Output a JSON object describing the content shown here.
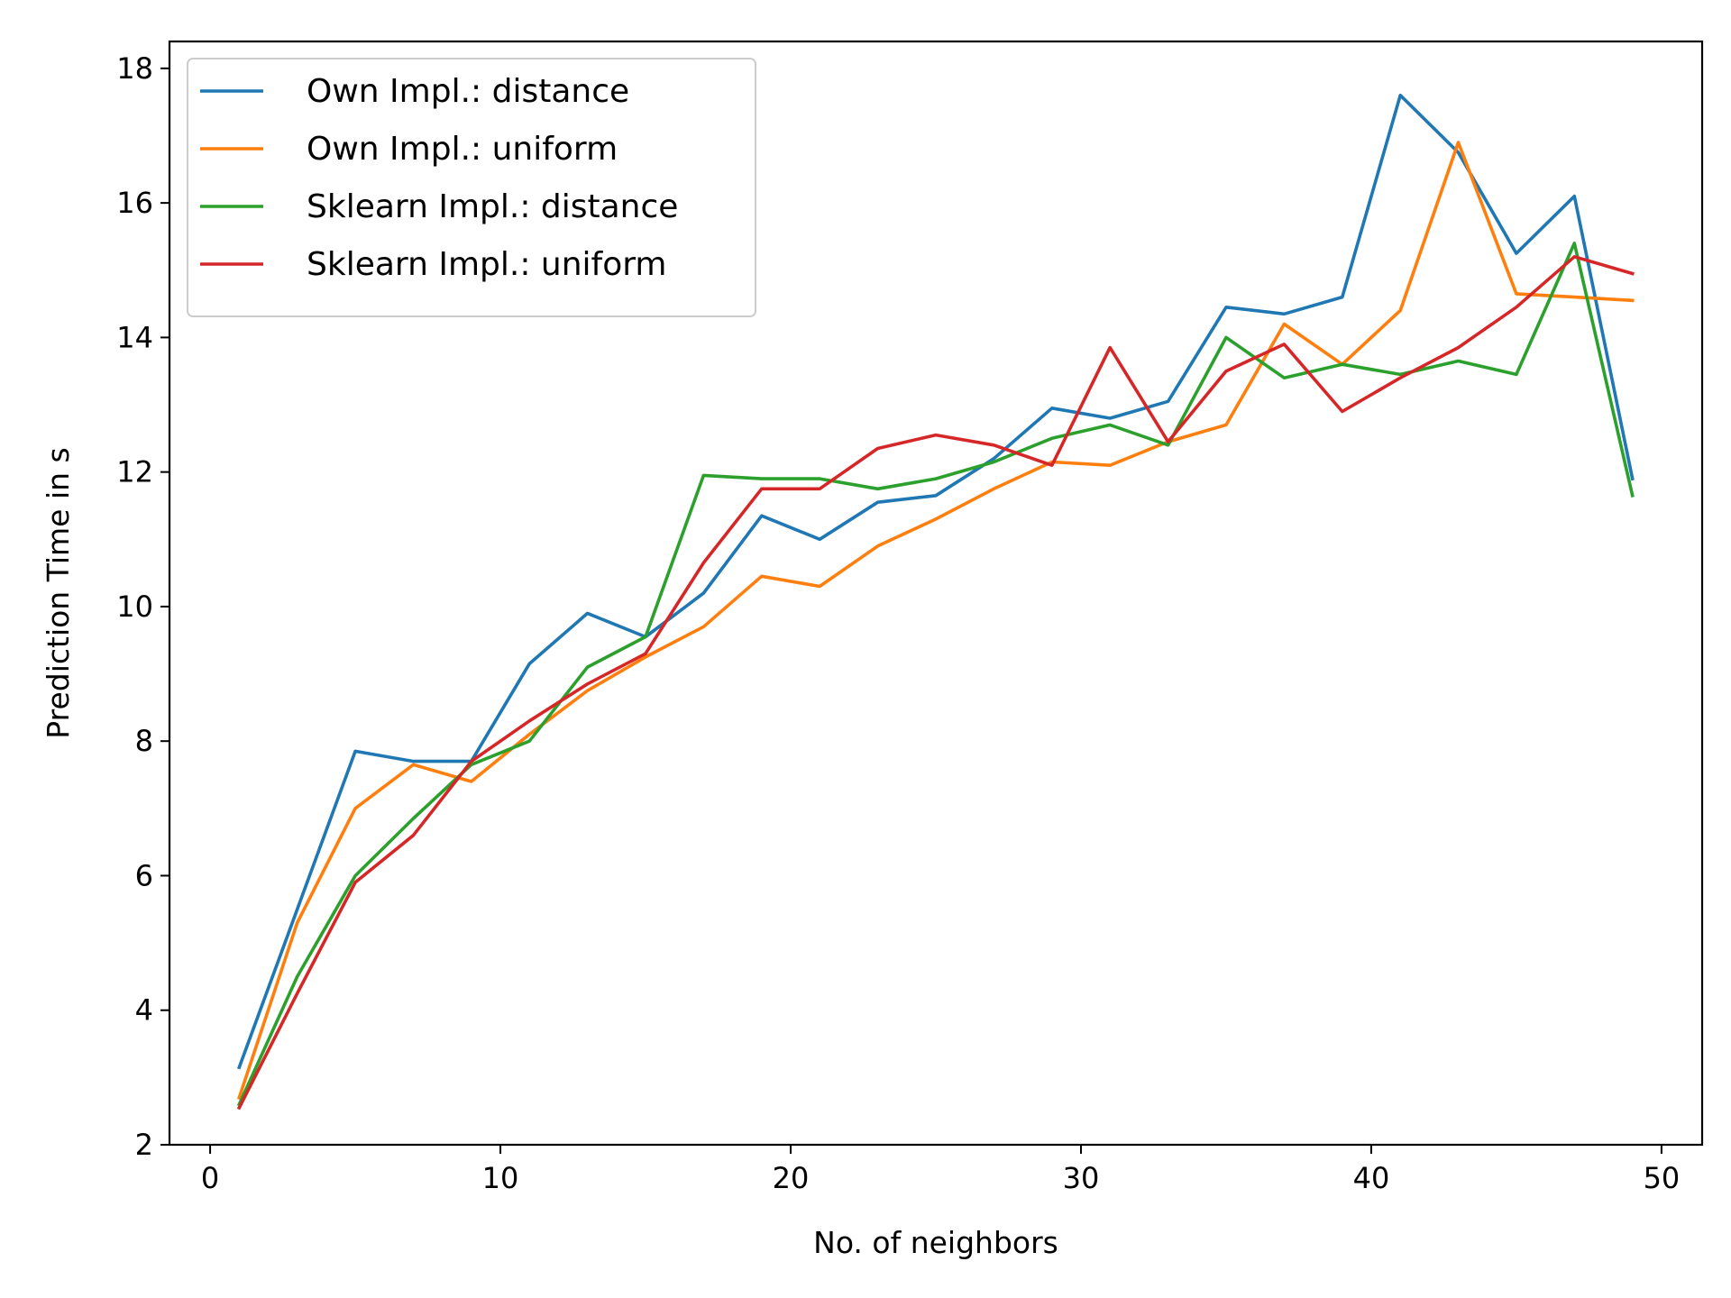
{
  "chart_data": {
    "type": "line",
    "xlabel": "No. of neighbors",
    "ylabel": "Prediction Time in s",
    "xlim": [
      -1.4,
      51.4
    ],
    "ylim": [
      2,
      18.4
    ],
    "xticks": [
      0,
      10,
      20,
      30,
      40,
      50
    ],
    "yticks": [
      2,
      4,
      6,
      8,
      10,
      12,
      14,
      16,
      18
    ],
    "grid": false,
    "legend_position": "top-left",
    "x": [
      1,
      3,
      5,
      7,
      9,
      11,
      13,
      15,
      17,
      19,
      21,
      23,
      25,
      27,
      29,
      31,
      33,
      35,
      37,
      39,
      41,
      43,
      45,
      47,
      49
    ],
    "series": [
      {
        "name": "Own Impl.: distance",
        "color": "#1f77b4",
        "values": [
          3.15,
          5.5,
          7.85,
          7.7,
          7.7,
          9.15,
          9.9,
          9.55,
          10.2,
          11.35,
          11.0,
          11.55,
          11.65,
          12.2,
          12.95,
          12.8,
          13.05,
          14.45,
          14.35,
          14.6,
          17.6,
          16.75,
          15.25,
          16.1,
          11.9
        ]
      },
      {
        "name": "Own Impl.: uniform",
        "color": "#ff7f0e",
        "values": [
          2.7,
          5.3,
          7.0,
          7.65,
          7.4,
          8.1,
          8.75,
          9.25,
          9.7,
          10.45,
          10.3,
          10.9,
          11.3,
          11.75,
          12.15,
          12.1,
          12.45,
          12.7,
          14.2,
          13.6,
          14.4,
          16.9,
          14.65,
          14.6,
          14.55
        ]
      },
      {
        "name": "Sklearn Impl.: distance",
        "color": "#2ca02c",
        "values": [
          2.6,
          4.5,
          6.0,
          6.85,
          7.65,
          8.0,
          9.1,
          9.55,
          11.95,
          11.9,
          11.9,
          11.75,
          11.9,
          12.15,
          12.5,
          12.7,
          12.4,
          14.0,
          13.4,
          13.6,
          13.45,
          13.65,
          13.45,
          15.4,
          11.65
        ]
      },
      {
        "name": "Sklearn Impl.: uniform",
        "color": "#d62728",
        "values": [
          2.55,
          4.25,
          5.9,
          6.6,
          7.7,
          8.3,
          8.85,
          9.3,
          10.65,
          11.75,
          11.75,
          12.35,
          12.55,
          12.4,
          12.1,
          13.85,
          12.45,
          13.5,
          13.9,
          12.9,
          13.4,
          13.85,
          14.45,
          15.2,
          14.95
        ]
      }
    ]
  }
}
